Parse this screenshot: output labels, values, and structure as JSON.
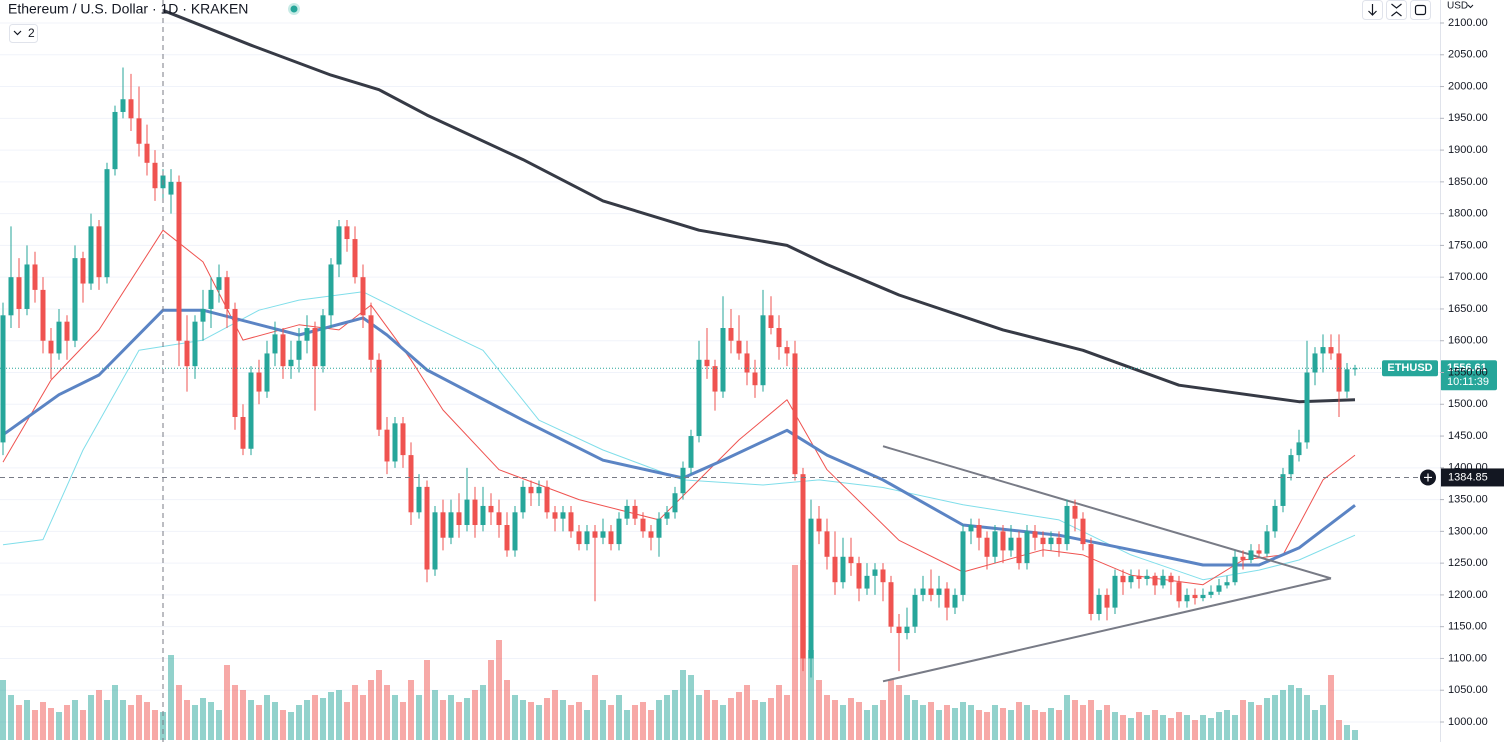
{
  "chart_data": {
    "type": "candlestick",
    "title": "Ethereum / U.S. Dollar · 1D · KRAKEN",
    "indicator_count": 2,
    "currency": "USD",
    "up_color": "#26a69a",
    "down_color": "#ef5350",
    "ylim": [
      1000,
      2100
    ],
    "yticks": [
      {
        "value": 1000,
        "label": "1000.00"
      },
      {
        "value": 1050,
        "label": "1050.00"
      },
      {
        "value": 1100,
        "label": "1100.00"
      },
      {
        "value": 1150,
        "label": "1150.00"
      },
      {
        "value": 1200,
        "label": "1200.00"
      },
      {
        "value": 1250,
        "label": "1250.00"
      },
      {
        "value": 1300,
        "label": "1300.00"
      },
      {
        "value": 1350,
        "label": "1350.00"
      },
      {
        "value": 1400,
        "label": "1400.00"
      },
      {
        "value": 1450,
        "label": "1450.00"
      },
      {
        "value": 1500,
        "label": "1500.00"
      },
      {
        "value": 1550,
        "label": "1550.00"
      },
      {
        "value": 1600,
        "label": "1600.00"
      },
      {
        "value": 1650,
        "label": "1650.00"
      },
      {
        "value": 1700,
        "label": "1700.00"
      },
      {
        "value": 1750,
        "label": "1750.00"
      },
      {
        "value": 1800,
        "label": "1800.00"
      },
      {
        "value": 1850,
        "label": "1850.00"
      },
      {
        "value": 1900,
        "label": "1900.00"
      },
      {
        "value": 1950,
        "label": "1950.00"
      },
      {
        "value": 2000,
        "label": "2000.00"
      },
      {
        "value": 2050,
        "label": "2050.00"
      },
      {
        "value": 2100,
        "label": "2100.00"
      }
    ],
    "grid": true,
    "candles": [
      [
        1440,
        1660,
        1420,
        1640
      ],
      [
        1640,
        1780,
        1620,
        1700
      ],
      [
        1700,
        1730,
        1620,
        1650
      ],
      [
        1650,
        1750,
        1640,
        1720
      ],
      [
        1720,
        1740,
        1660,
        1680
      ],
      [
        1680,
        1700,
        1580,
        1600
      ],
      [
        1600,
        1620,
        1540,
        1580
      ],
      [
        1580,
        1650,
        1570,
        1630
      ],
      [
        1630,
        1640,
        1570,
        1600
      ],
      [
        1600,
        1750,
        1590,
        1730
      ],
      [
        1730,
        1740,
        1660,
        1690
      ],
      [
        1690,
        1800,
        1680,
        1780
      ],
      [
        1780,
        1790,
        1680,
        1700
      ],
      [
        1700,
        1880,
        1690,
        1870
      ],
      [
        1870,
        1970,
        1860,
        1960
      ],
      [
        1960,
        2030,
        1950,
        1980
      ],
      [
        1980,
        2020,
        1930,
        1950
      ],
      [
        1950,
        2000,
        1890,
        1910
      ],
      [
        1910,
        1940,
        1860,
        1880
      ],
      [
        1880,
        1900,
        1820,
        1840
      ],
      [
        1840,
        1870,
        1820,
        1860
      ],
      [
        1830,
        1870,
        1800,
        1850
      ],
      [
        1850,
        1860,
        1560,
        1600
      ],
      [
        1600,
        1640,
        1520,
        1560
      ],
      [
        1560,
        1640,
        1540,
        1630
      ],
      [
        1630,
        1680,
        1600,
        1650
      ],
      [
        1650,
        1700,
        1620,
        1680
      ],
      [
        1680,
        1720,
        1660,
        1700
      ],
      [
        1700,
        1710,
        1620,
        1650
      ],
      [
        1650,
        1660,
        1460,
        1480
      ],
      [
        1480,
        1500,
        1420,
        1430
      ],
      [
        1430,
        1560,
        1420,
        1550
      ],
      [
        1550,
        1570,
        1500,
        1520
      ],
      [
        1520,
        1600,
        1510,
        1580
      ],
      [
        1580,
        1630,
        1560,
        1610
      ],
      [
        1610,
        1620,
        1540,
        1560
      ],
      [
        1560,
        1600,
        1540,
        1570
      ],
      [
        1570,
        1620,
        1550,
        1600
      ],
      [
        1600,
        1640,
        1580,
        1620
      ],
      [
        1620,
        1630,
        1490,
        1560
      ],
      [
        1560,
        1650,
        1550,
        1640
      ],
      [
        1640,
        1730,
        1620,
        1720
      ],
      [
        1720,
        1790,
        1700,
        1780
      ],
      [
        1780,
        1790,
        1740,
        1760
      ],
      [
        1760,
        1780,
        1690,
        1700
      ],
      [
        1700,
        1720,
        1620,
        1640
      ],
      [
        1640,
        1660,
        1550,
        1570
      ],
      [
        1570,
        1580,
        1450,
        1460
      ],
      [
        1460,
        1480,
        1390,
        1410
      ],
      [
        1410,
        1480,
        1400,
        1470
      ],
      [
        1470,
        1480,
        1400,
        1420
      ],
      [
        1420,
        1440,
        1310,
        1330
      ],
      [
        1330,
        1390,
        1320,
        1370
      ],
      [
        1370,
        1380,
        1220,
        1240
      ],
      [
        1240,
        1340,
        1230,
        1330
      ],
      [
        1330,
        1350,
        1270,
        1290
      ],
      [
        1290,
        1350,
        1280,
        1330
      ],
      [
        1330,
        1360,
        1290,
        1310
      ],
      [
        1310,
        1400,
        1300,
        1350
      ],
      [
        1350,
        1370,
        1290,
        1310
      ],
      [
        1310,
        1370,
        1300,
        1340
      ],
      [
        1340,
        1360,
        1310,
        1330
      ],
      [
        1330,
        1350,
        1290,
        1310
      ],
      [
        1310,
        1330,
        1260,
        1270
      ],
      [
        1270,
        1340,
        1260,
        1330
      ],
      [
        1330,
        1380,
        1320,
        1370
      ],
      [
        1370,
        1380,
        1340,
        1360
      ],
      [
        1360,
        1380,
        1340,
        1370
      ],
      [
        1370,
        1380,
        1320,
        1330
      ],
      [
        1330,
        1340,
        1300,
        1320
      ],
      [
        1320,
        1340,
        1300,
        1330
      ],
      [
        1330,
        1340,
        1290,
        1300
      ],
      [
        1300,
        1310,
        1270,
        1280
      ],
      [
        1280,
        1310,
        1270,
        1300
      ],
      [
        1300,
        1310,
        1190,
        1290
      ],
      [
        1290,
        1320,
        1280,
        1300
      ],
      [
        1300,
        1310,
        1270,
        1280
      ],
      [
        1280,
        1330,
        1270,
        1320
      ],
      [
        1320,
        1350,
        1310,
        1340
      ],
      [
        1340,
        1350,
        1310,
        1320
      ],
      [
        1320,
        1330,
        1290,
        1300
      ],
      [
        1300,
        1310,
        1270,
        1290
      ],
      [
        1290,
        1330,
        1260,
        1320
      ],
      [
        1320,
        1340,
        1310,
        1330
      ],
      [
        1330,
        1370,
        1320,
        1360
      ],
      [
        1360,
        1410,
        1350,
        1400
      ],
      [
        1400,
        1460,
        1390,
        1450
      ],
      [
        1450,
        1600,
        1440,
        1570
      ],
      [
        1570,
        1620,
        1540,
        1560
      ],
      [
        1560,
        1570,
        1490,
        1520
      ],
      [
        1520,
        1670,
        1510,
        1620
      ],
      [
        1620,
        1650,
        1580,
        1600
      ],
      [
        1600,
        1640,
        1570,
        1580
      ],
      [
        1580,
        1600,
        1530,
        1550
      ],
      [
        1550,
        1570,
        1510,
        1530
      ],
      [
        1530,
        1680,
        1520,
        1640
      ],
      [
        1640,
        1670,
        1610,
        1620
      ],
      [
        1620,
        1640,
        1570,
        1590
      ],
      [
        1590,
        1600,
        1560,
        1580
      ],
      [
        1580,
        1600,
        1380,
        1390
      ],
      [
        1390,
        1400,
        1080,
        1100
      ],
      [
        1100,
        1350,
        1070,
        1320
      ],
      [
        1320,
        1340,
        1280,
        1300
      ],
      [
        1300,
        1320,
        1240,
        1260
      ],
      [
        1260,
        1300,
        1200,
        1220
      ],
      [
        1220,
        1290,
        1210,
        1260
      ],
      [
        1260,
        1290,
        1230,
        1250
      ],
      [
        1250,
        1260,
        1190,
        1210
      ],
      [
        1210,
        1250,
        1200,
        1230
      ],
      [
        1230,
        1250,
        1200,
        1240
      ],
      [
        1240,
        1250,
        1190,
        1220
      ],
      [
        1220,
        1230,
        1140,
        1150
      ],
      [
        1150,
        1170,
        1080,
        1140
      ],
      [
        1140,
        1180,
        1130,
        1150
      ],
      [
        1150,
        1210,
        1140,
        1200
      ],
      [
        1200,
        1230,
        1190,
        1210
      ],
      [
        1210,
        1240,
        1190,
        1200
      ],
      [
        1200,
        1230,
        1180,
        1210
      ],
      [
        1210,
        1220,
        1160,
        1180
      ],
      [
        1180,
        1210,
        1170,
        1200
      ],
      [
        1200,
        1310,
        1190,
        1300
      ],
      [
        1300,
        1320,
        1280,
        1310
      ],
      [
        1310,
        1320,
        1270,
        1290
      ],
      [
        1290,
        1300,
        1240,
        1260
      ],
      [
        1260,
        1310,
        1250,
        1300
      ],
      [
        1300,
        1310,
        1250,
        1270
      ],
      [
        1270,
        1310,
        1260,
        1290
      ],
      [
        1290,
        1300,
        1240,
        1250
      ],
      [
        1250,
        1310,
        1240,
        1300
      ],
      [
        1300,
        1310,
        1270,
        1290
      ],
      [
        1290,
        1300,
        1260,
        1280
      ],
      [
        1280,
        1300,
        1270,
        1290
      ],
      [
        1290,
        1300,
        1260,
        1280
      ],
      [
        1280,
        1350,
        1270,
        1340
      ],
      [
        1340,
        1350,
        1300,
        1320
      ],
      [
        1320,
        1330,
        1270,
        1280
      ],
      [
        1280,
        1290,
        1160,
        1170
      ],
      [
        1170,
        1210,
        1160,
        1200
      ],
      [
        1200,
        1210,
        1160,
        1180
      ],
      [
        1180,
        1240,
        1170,
        1230
      ],
      [
        1230,
        1240,
        1200,
        1220
      ],
      [
        1220,
        1240,
        1210,
        1230
      ],
      [
        1230,
        1240,
        1210,
        1225
      ],
      [
        1225,
        1240,
        1215,
        1230
      ],
      [
        1230,
        1235,
        1200,
        1215
      ],
      [
        1215,
        1240,
        1210,
        1230
      ],
      [
        1230,
        1235,
        1200,
        1220
      ],
      [
        1220,
        1230,
        1180,
        1190
      ],
      [
        1190,
        1210,
        1180,
        1200
      ],
      [
        1200,
        1210,
        1185,
        1195
      ],
      [
        1195,
        1210,
        1190,
        1200
      ],
      [
        1200,
        1215,
        1195,
        1205
      ],
      [
        1205,
        1225,
        1200,
        1215
      ],
      [
        1215,
        1230,
        1210,
        1220
      ],
      [
        1220,
        1270,
        1215,
        1260
      ],
      [
        1260,
        1270,
        1240,
        1255
      ],
      [
        1255,
        1280,
        1250,
        1270
      ],
      [
        1270,
        1280,
        1260,
        1265
      ],
      [
        1265,
        1310,
        1260,
        1300
      ],
      [
        1300,
        1350,
        1290,
        1340
      ],
      [
        1340,
        1400,
        1330,
        1390
      ],
      [
        1390,
        1430,
        1380,
        1420
      ],
      [
        1420,
        1460,
        1410,
        1440
      ],
      [
        1440,
        1600,
        1430,
        1550
      ],
      [
        1550,
        1590,
        1530,
        1580
      ],
      [
        1580,
        1610,
        1550,
        1590
      ],
      [
        1590,
        1610,
        1570,
        1580
      ],
      [
        1580,
        1610,
        1480,
        1520
      ],
      [
        1520,
        1565,
        1510,
        1555
      ],
      [
        1555,
        1562,
        1545,
        1556.61
      ]
    ],
    "vlim": [
      0,
      250
    ],
    "volumes": [
      60,
      45,
      35,
      40,
      30,
      38,
      32,
      28,
      35,
      40,
      30,
      45,
      50,
      40,
      55,
      40,
      35,
      45,
      38,
      30,
      28,
      85,
      55,
      40,
      35,
      42,
      38,
      30,
      75,
      55,
      50,
      40,
      35,
      45,
      38,
      30,
      28,
      35,
      40,
      45,
      42,
      48,
      50,
      38,
      55,
      45,
      60,
      70,
      55,
      45,
      38,
      60,
      45,
      80,
      50,
      40,
      45,
      38,
      42,
      50,
      55,
      80,
      100,
      60,
      45,
      40,
      38,
      35,
      42,
      50,
      40,
      35,
      38,
      30,
      65,
      40,
      35,
      45,
      30,
      35,
      38,
      30,
      40,
      45,
      50,
      70,
      65,
      45,
      50,
      40,
      35,
      42,
      48,
      55,
      40,
      38,
      42,
      55,
      45,
      175,
      180,
      90,
      60,
      45,
      40,
      35,
      42,
      38,
      30,
      35,
      40,
      60,
      55,
      45,
      40,
      35,
      38,
      30,
      35,
      32,
      38,
      35,
      30,
      28,
      35,
      32,
      30,
      38,
      35,
      30,
      28,
      32,
      30,
      45,
      40,
      35,
      40,
      30,
      35,
      28,
      25,
      22,
      28,
      25,
      30,
      25,
      22,
      28,
      25,
      20,
      25,
      22,
      28,
      30,
      25,
      40,
      38,
      35,
      42,
      45,
      50,
      55,
      52,
      45,
      30,
      35,
      65,
      20,
      15,
      10
    ],
    "moving_averages": [
      {
        "color": "#80deea",
        "width": 1,
        "x": [
          0,
          5,
          10,
          17,
          25,
          32,
          37,
          45,
          52,
          60,
          67,
          75,
          85,
          95,
          102,
          110,
          120,
          132,
          141,
          150,
          157,
          162,
          169
        ],
        "values": [
          1279,
          1287,
          1428,
          1585,
          1601,
          1648,
          1664,
          1677,
          1633,
          1585,
          1475,
          1428,
          1381,
          1373,
          1381,
          1369,
          1342,
          1318,
          1263,
          1224,
          1239,
          1255,
          1294
        ]
      },
      {
        "color": "#ef5350",
        "width": 1,
        "x": [
          0,
          6,
          12,
          20,
          25,
          30,
          37,
          42,
          46,
          51,
          55,
          62,
          72,
          82,
          87,
          92,
          98,
          103,
          112,
          120,
          130,
          135,
          141,
          150,
          155,
          160,
          165,
          169
        ],
        "values": [
          1409,
          1538,
          1617,
          1774,
          1724,
          1601,
          1625,
          1617,
          1656,
          1570,
          1491,
          1397,
          1350,
          1318,
          1381,
          1444,
          1507,
          1397,
          1286,
          1236,
          1271,
          1263,
          1231,
          1216,
          1255,
          1263,
          1381,
          1420
        ]
      },
      {
        "color": "#5b84c4",
        "width": 3,
        "x": [
          0,
          7,
          12,
          20,
          25,
          37,
          45,
          48,
          53,
          65,
          75,
          85,
          90,
          98,
          103,
          110,
          120,
          132,
          141,
          150,
          157,
          162,
          169
        ],
        "values": [
          1452,
          1515,
          1546,
          1648,
          1648,
          1609,
          1636,
          1609,
          1554,
          1475,
          1412,
          1384,
          1412,
          1459,
          1420,
          1381,
          1310,
          1294,
          1271,
          1247,
          1247,
          1274,
          1341
        ]
      },
      {
        "color": "#363a45",
        "width": 3,
        "x": [
          20,
          31,
          41,
          47,
          53,
          65,
          75,
          87,
          98,
          103,
          112,
          125,
          135,
          147,
          162,
          169
        ],
        "values": [
          2120,
          2065,
          2018,
          1995,
          1955,
          1885,
          1820,
          1774,
          1750,
          1720,
          1672,
          1617,
          1585,
          1530,
          1504,
          1507
        ]
      }
    ],
    "trend_lines": [
      {
        "color": "#787b86",
        "x": [
          110,
          166
        ],
        "values": [
          1434,
          1226
        ]
      },
      {
        "color": "#787b86",
        "x": [
          110,
          166
        ],
        "values": [
          1064,
          1226
        ]
      }
    ],
    "last_price": {
      "symbol": "ETHUSD",
      "value": 1556.61,
      "countdown": "10:11:39"
    },
    "crosshair": {
      "x": 20,
      "y": 1384.85
    }
  }
}
